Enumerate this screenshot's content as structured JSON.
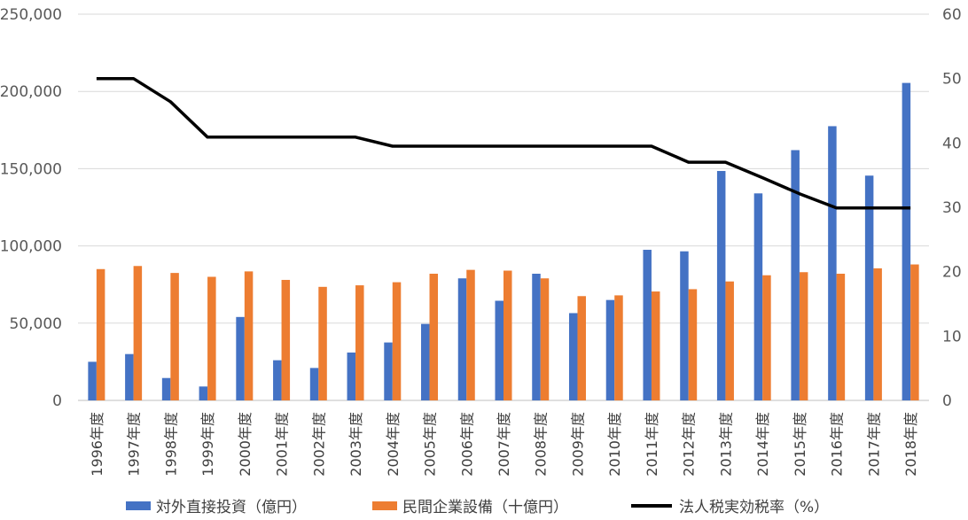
{
  "chart_data": {
    "type": "bar",
    "categories": [
      "1996年度",
      "1997年度",
      "1998年度",
      "1999年度",
      "2000年度",
      "2001年度",
      "2002年度",
      "2003年度",
      "2004年度",
      "2005年度",
      "2006年度",
      "2007年度",
      "2008年度",
      "2009年度",
      "2010年度",
      "2011年度",
      "2012年度",
      "2013年度",
      "2014年度",
      "2015年度",
      "2016年度",
      "2017年度",
      "2018年度"
    ],
    "series": [
      {
        "name": "対外直接投資（億円）",
        "kind": "bar",
        "axis": "left",
        "color": "#4472C4",
        "values": [
          25000,
          30000,
          14500,
          9000,
          54000,
          26000,
          21000,
          31000,
          37500,
          49500,
          79000,
          64500,
          82000,
          56500,
          65000,
          97500,
          96500,
          148500,
          134000,
          162000,
          177500,
          145500,
          205500
        ]
      },
      {
        "name": "民間企業設備（十億円）",
        "kind": "bar",
        "axis": "left",
        "color": "#ED7D31",
        "values": [
          85000,
          87000,
          82500,
          80000,
          83500,
          78000,
          73500,
          74500,
          76500,
          82000,
          84500,
          84000,
          79000,
          67500,
          68000,
          70500,
          72000,
          77000,
          81000,
          83000,
          82000,
          85500,
          88000
        ]
      },
      {
        "name": "法人税実効税率（%）",
        "kind": "line",
        "axis": "right",
        "color": "#000000",
        "values": [
          50,
          50,
          46.4,
          40.9,
          40.9,
          40.9,
          40.9,
          40.9,
          39.5,
          39.5,
          39.5,
          39.5,
          39.5,
          39.5,
          39.5,
          39.5,
          37,
          37,
          34.6,
          32.1,
          29.9,
          29.9,
          29.9
        ]
      }
    ],
    "y_left": {
      "min": 0,
      "max": 250000,
      "ticks": [
        "0",
        "50,000",
        "100,000",
        "150,000",
        "200,000",
        "250,000"
      ]
    },
    "y_right": {
      "min": 0,
      "max": 60,
      "ticks": [
        "0",
        "10",
        "20",
        "30",
        "40",
        "50",
        "60"
      ]
    },
    "grid": true,
    "legend_position": "bottom"
  }
}
